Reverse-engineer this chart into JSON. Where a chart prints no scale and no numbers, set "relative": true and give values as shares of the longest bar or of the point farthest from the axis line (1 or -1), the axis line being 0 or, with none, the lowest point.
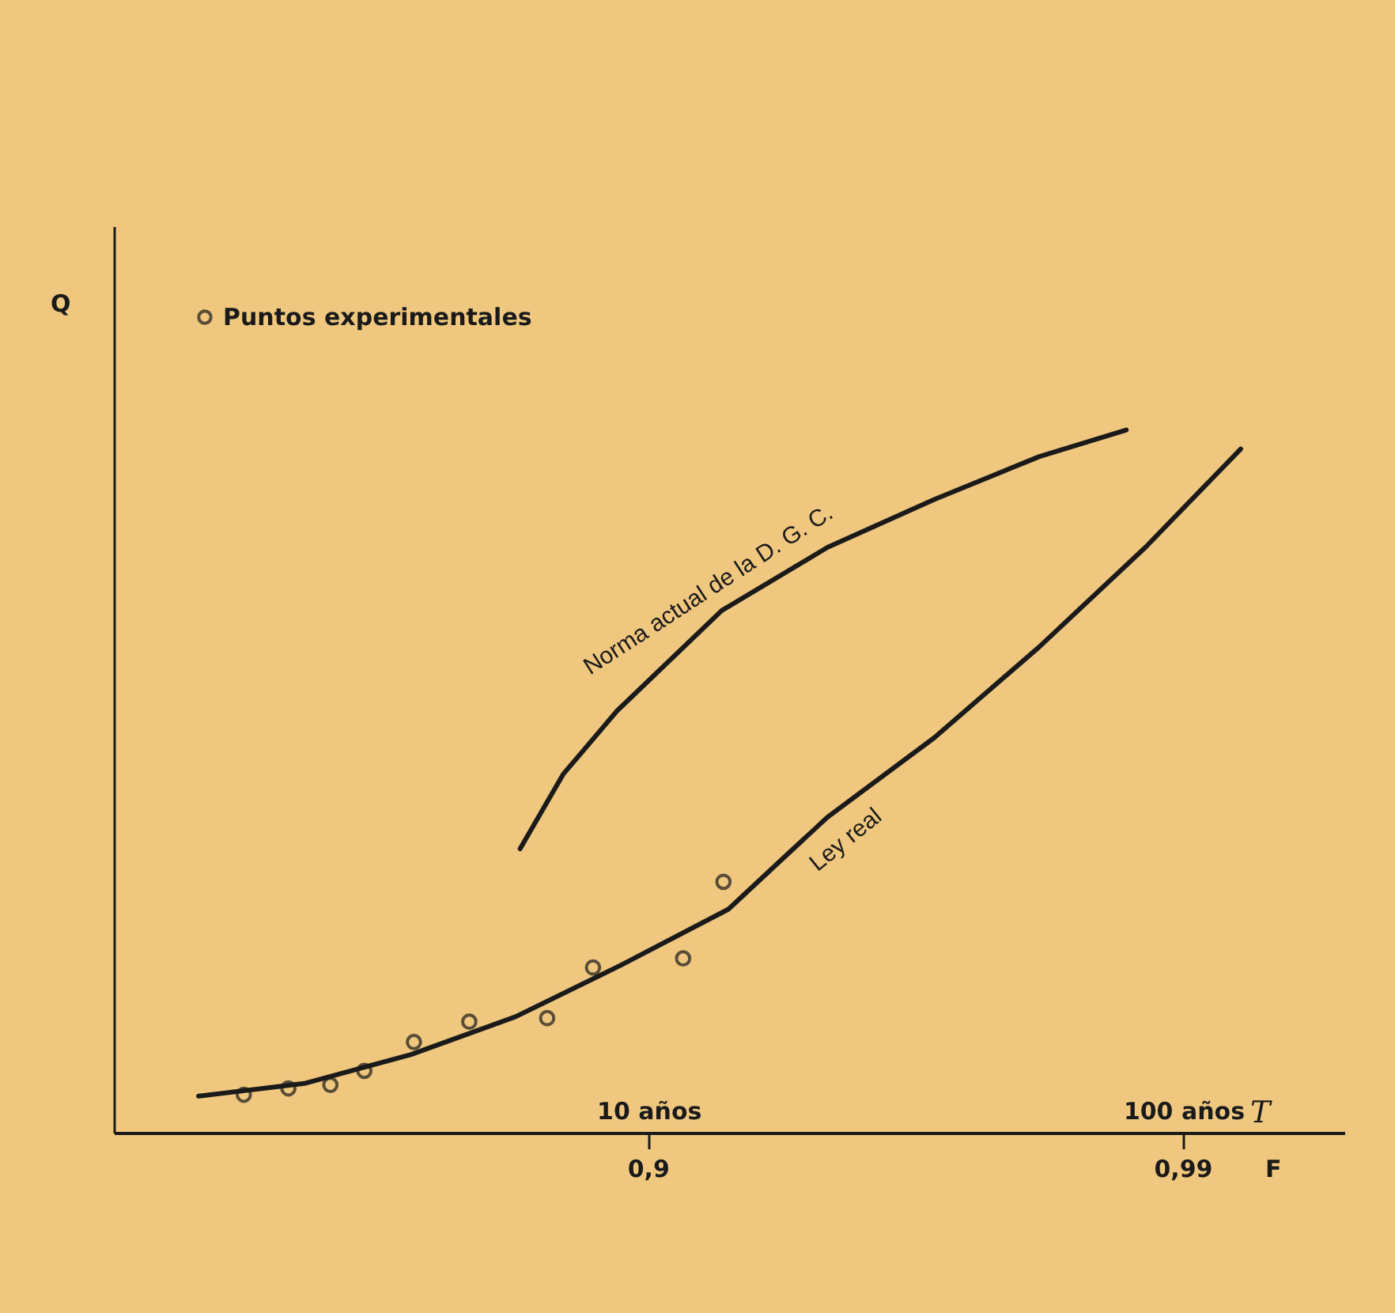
{
  "chart_data": {
    "type": "line",
    "xlabel": "T",
    "relative": true,
    "log": "x",
    "annotations": [
      "Q",
      "0,9",
      "0,99",
      "F"
    ],
    "xlim": [
      1,
      200
    ],
    "xticks": [
      {
        "value": 10,
        "label": "10 años"
      },
      {
        "value": 100,
        "label": "100 años"
      }
    ],
    "legend": "top left",
    "series": [
      {
        "name": "Ley real",
        "color": "#1a1a1a",
        "x": [
          1.44,
          2.27,
          3.59,
          5.64,
          8.91,
          14.1,
          17.3,
          21.6,
          34.2,
          53.7,
          84.9,
          128
        ],
        "values": [
          0.052,
          0.07,
          0.111,
          0.165,
          0.239,
          0.318,
          0.381,
          0.449,
          0.562,
          0.691,
          0.833,
          0.973
        ]
      },
      {
        "name": "Norma actual de la D. G. C.",
        "color": "#1a1a1a",
        "x": [
          5.75,
          6.92,
          8.72,
          13.7,
          21.6,
          34.2,
          53.7,
          78.2
        ],
        "values": [
          0.404,
          0.51,
          0.6,
          0.743,
          0.833,
          0.901,
          0.962,
          1
        ]
      },
      {
        "name": "Puntos experimentales",
        "type": "scatter",
        "marker": "circle",
        "color": "#1a1a1a",
        "x": [
          1.75,
          2.12,
          2.54,
          2.94,
          3.64,
          4.62,
          6.46,
          7.87,
          11.6,
          13.8
        ],
        "values": [
          0.054,
          0.063,
          0.068,
          0.088,
          0.129,
          0.158,
          0.163,
          0.235,
          0.248,
          0.357
        ]
      }
    ]
  }
}
